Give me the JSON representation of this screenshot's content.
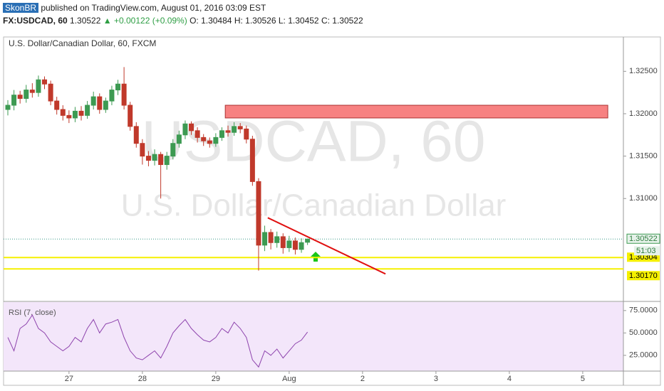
{
  "header": {
    "user": "SkonBR",
    "published": "published on TradingView.com, August 01, 2016 03:09 EST",
    "symbol": "FX:USDCAD, 60",
    "last": "1.30522",
    "change": "▲ +0.00122 (+0.09%)",
    "open": "O: 1.30484",
    "high": "H: 1.30526",
    "low": "L: 1.30452",
    "close": "C: 1.30522"
  },
  "chart_data": [
    {
      "type": "candlestick",
      "title": "U.S. Dollar/Canadian Dollar, 60, FXCM",
      "watermark": "USDCAD, 60",
      "watermark2": "U.S. Dollar/Canadian Dollar",
      "x": [
        -20,
        -18,
        -16,
        -14,
        -12,
        -10,
        -8,
        -6,
        -4,
        -2,
        0,
        2,
        4,
        6,
        8,
        10,
        12,
        14,
        16,
        18,
        20,
        22,
        24,
        26,
        28,
        30,
        32,
        34,
        36,
        38,
        40,
        42,
        44,
        46,
        48,
        50,
        52,
        54,
        56,
        58,
        60,
        62,
        64,
        66,
        68,
        70,
        72,
        74,
        76,
        78
      ],
      "open": [
        1.3205,
        1.321,
        1.3222,
        1.3218,
        1.3228,
        1.3225,
        1.324,
        1.3235,
        1.3215,
        1.3205,
        1.3198,
        1.3195,
        1.3203,
        1.3198,
        1.321,
        1.322,
        1.3205,
        1.3215,
        1.3228,
        1.3235,
        1.321,
        1.3185,
        1.3165,
        1.315,
        1.3145,
        1.3152,
        1.314,
        1.315,
        1.3165,
        1.3175,
        1.3188,
        1.318,
        1.3172,
        1.3168,
        1.3165,
        1.3172,
        1.318,
        1.3178,
        1.3185,
        1.3182,
        1.317,
        1.312,
        1.3045,
        1.306,
        1.3048,
        1.3055,
        1.3042,
        1.305,
        1.304,
        1.30484
      ],
      "high": [
        1.3216,
        1.3228,
        1.3227,
        1.3234,
        1.3236,
        1.3245,
        1.3244,
        1.3239,
        1.322,
        1.321,
        1.3204,
        1.3208,
        1.3209,
        1.3215,
        1.3226,
        1.3224,
        1.3219,
        1.3233,
        1.324,
        1.3255,
        1.3214,
        1.319,
        1.317,
        1.3156,
        1.3158,
        1.3155,
        1.3155,
        1.317,
        1.318,
        1.3192,
        1.3191,
        1.3184,
        1.3176,
        1.3172,
        1.3177,
        1.3184,
        1.3186,
        1.319,
        1.3189,
        1.3186,
        1.3174,
        1.3124,
        1.3068,
        1.3064,
        1.3061,
        1.3059,
        1.3056,
        1.3054,
        1.3053,
        1.30526
      ],
      "low": [
        1.3198,
        1.3204,
        1.3212,
        1.3213,
        1.3219,
        1.322,
        1.3229,
        1.321,
        1.3199,
        1.3192,
        1.3189,
        1.319,
        1.3192,
        1.3194,
        1.3205,
        1.32,
        1.3201,
        1.321,
        1.3222,
        1.3205,
        1.318,
        1.316,
        1.314,
        1.3138,
        1.3139,
        1.31,
        1.3134,
        1.3146,
        1.316,
        1.317,
        1.3175,
        1.3166,
        1.3162,
        1.316,
        1.3161,
        1.3168,
        1.3173,
        1.3174,
        1.3177,
        1.3165,
        1.3115,
        1.3015,
        1.3038,
        1.304,
        1.3042,
        1.3035,
        1.3037,
        1.3034,
        1.3036,
        1.30452
      ],
      "close": [
        1.321,
        1.3222,
        1.3218,
        1.3228,
        1.3225,
        1.324,
        1.3235,
        1.3215,
        1.3205,
        1.3198,
        1.3195,
        1.3203,
        1.3198,
        1.321,
        1.322,
        1.3205,
        1.3215,
        1.3228,
        1.3235,
        1.321,
        1.3185,
        1.3165,
        1.315,
        1.3145,
        1.3152,
        1.314,
        1.315,
        1.3165,
        1.3175,
        1.3188,
        1.318,
        1.3172,
        1.3168,
        1.3165,
        1.3172,
        1.318,
        1.3178,
        1.3185,
        1.3182,
        1.317,
        1.312,
        1.3045,
        1.306,
        1.3048,
        1.3055,
        1.3042,
        1.305,
        1.304,
        1.3048,
        1.30522
      ],
      "up_color": "#3d9a52",
      "down_color": "#c0392b",
      "xlim": [
        -21.4,
        181.3
      ],
      "xticks": [
        {
          "value": 0,
          "label": "27"
        },
        {
          "value": 24,
          "label": "28"
        },
        {
          "value": 48,
          "label": "29"
        },
        {
          "value": 72,
          "label": "Aug"
        },
        {
          "value": 96,
          "label": "2"
        },
        {
          "value": 120,
          "label": "3"
        },
        {
          "value": 144,
          "label": "4"
        },
        {
          "value": 168,
          "label": "5"
        }
      ],
      "ylim": [
        1.2982,
        1.3288
      ],
      "yticks": [
        {
          "value": 1.31,
          "label": "1.31000"
        },
        {
          "value": 1.315,
          "label": "1.31500"
        },
        {
          "value": 1.32,
          "label": "1.32000"
        },
        {
          "value": 1.325,
          "label": "1.32500"
        }
      ],
      "last_price": {
        "value": 1.30522,
        "label": "1.30522"
      },
      "countdown": "51:03",
      "levels": [
        {
          "value": 1.30304,
          "label": "1.30304"
        },
        {
          "value": 1.3017,
          "label": "1.30170"
        }
      ],
      "zone": {
        "x": [
          51.1,
          176.2
        ],
        "y": [
          1.3195,
          1.321
        ]
      },
      "trendline": {
        "x": [
          65,
          103.5
        ],
        "y": [
          1.30773,
          1.30111
        ]
      }
    },
    {
      "type": "line",
      "title": "RSI (7, close)",
      "color": "#8e44ad",
      "x": [
        -20,
        -18,
        -16,
        -14,
        -12,
        -10,
        -8,
        -6,
        -4,
        -2,
        0,
        2,
        4,
        6,
        8,
        10,
        12,
        14,
        16,
        18,
        20,
        22,
        24,
        26,
        28,
        30,
        32,
        34,
        36,
        38,
        40,
        42,
        44,
        46,
        48,
        50,
        52,
        54,
        56,
        58,
        60,
        62,
        64,
        66,
        68,
        70,
        72,
        74,
        76,
        78
      ],
      "values": [
        45,
        30,
        55,
        60,
        70,
        55,
        50,
        40,
        35,
        30,
        35,
        45,
        40,
        55,
        65,
        50,
        60,
        62,
        65,
        45,
        30,
        22,
        20,
        25,
        30,
        22,
        35,
        50,
        58,
        65,
        55,
        48,
        42,
        40,
        45,
        55,
        50,
        62,
        55,
        45,
        20,
        12,
        30,
        25,
        32,
        22,
        30,
        38,
        42,
        51
      ],
      "ylim": [
        9,
        82
      ],
      "yticks": [
        {
          "value": 25,
          "label": "25.0000"
        },
        {
          "value": 50,
          "label": "50.0000"
        },
        {
          "value": 75,
          "label": "75.0000"
        }
      ]
    }
  ]
}
